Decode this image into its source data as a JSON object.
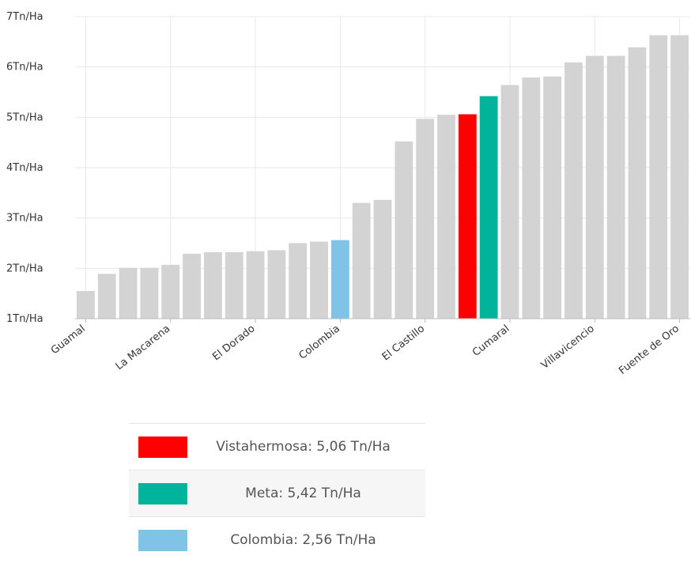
{
  "chart_data": {
    "type": "bar",
    "categories": [
      "Guamal",
      "",
      "",
      "",
      "La Macarena",
      "",
      "",
      "",
      "El Dorado",
      "",
      "",
      "",
      "Colombia",
      "",
      "",
      "",
      "El Castillo",
      "",
      "",
      "",
      "Cumaral",
      "",
      "",
      "",
      "Villavicencio",
      "",
      "",
      "",
      "Fuente de Oro"
    ],
    "values": [
      1.55,
      1.89,
      2.01,
      2.01,
      2.07,
      2.29,
      2.32,
      2.32,
      2.34,
      2.36,
      2.5,
      2.53,
      2.56,
      3.3,
      3.36,
      4.52,
      4.97,
      5.05,
      5.06,
      5.42,
      5.64,
      5.79,
      5.81,
      6.09,
      6.22,
      6.22,
      6.39,
      6.63,
      6.63
    ],
    "bar_colors": [
      "#d3d3d3",
      "#d3d3d3",
      "#d3d3d3",
      "#d3d3d3",
      "#d3d3d3",
      "#d3d3d3",
      "#d3d3d3",
      "#d3d3d3",
      "#d3d3d3",
      "#d3d3d3",
      "#d3d3d3",
      "#d3d3d3",
      "#7fc4e6",
      "#d3d3d3",
      "#d3d3d3",
      "#d3d3d3",
      "#d3d3d3",
      "#d3d3d3",
      "#ff0000",
      "#00b39b",
      "#d3d3d3",
      "#d3d3d3",
      "#d3d3d3",
      "#d3d3d3",
      "#d3d3d3",
      "#d3d3d3",
      "#d3d3d3",
      "#d3d3d3",
      "#d3d3d3"
    ],
    "ylim": [
      1,
      7
    ],
    "yticks": [
      1,
      2,
      3,
      4,
      5,
      6,
      7
    ],
    "ytick_labels": [
      "1Tn/Ha",
      "2Tn/Ha",
      "3Tn/Ha",
      "4Tn/Ha",
      "5Tn/Ha",
      "6Tn/Ha",
      "7Tn/Ha"
    ],
    "grid": true,
    "xlabel": "",
    "ylabel": "",
    "title": ""
  },
  "legend": {
    "items": [
      {
        "color": "#ff0000",
        "label": "Vistahermosa:  5,06 Tn/Ha"
      },
      {
        "color": "#00b39b",
        "label": "Meta:  5,42 Tn/Ha"
      },
      {
        "color": "#7fc4e6",
        "label": "Colombia:  2,56 Tn/Ha"
      }
    ]
  }
}
